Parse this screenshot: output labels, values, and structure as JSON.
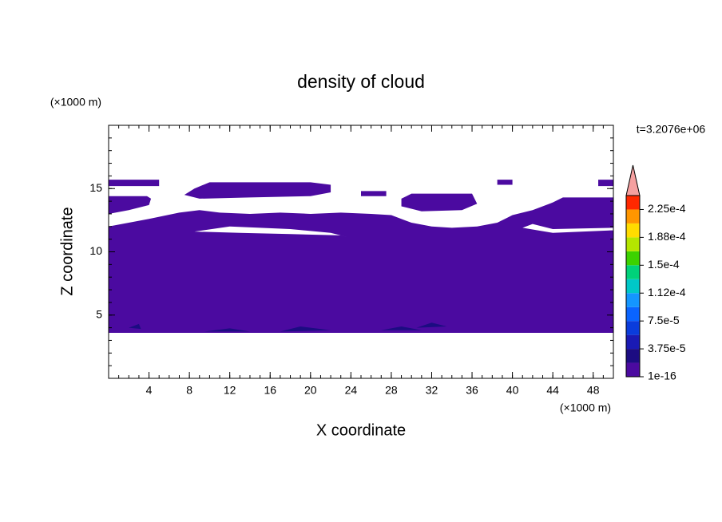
{
  "chart_data": {
    "type": "contour",
    "title": "density of cloud",
    "x_label": "X coordinate",
    "y_label": "Z coordinate",
    "x_unit": "(×1000 m)",
    "y_unit": "(×1000 m)",
    "time_label": "t=3.2076e+06",
    "xlim": [
      0,
      50
    ],
    "ylim": [
      0,
      20
    ],
    "xticks": [
      4,
      8,
      12,
      16,
      20,
      24,
      28,
      32,
      36,
      40,
      44,
      48
    ],
    "yticks": [
      5,
      10,
      15
    ],
    "colorbar": {
      "clim": [
        1e-16,
        0.00024375
      ],
      "colors": [
        "#4b0aa0",
        "#1c0c82",
        "#1a1ab4",
        "#0a3cdc",
        "#0a64ff",
        "#1496ff",
        "#00c8c8",
        "#00d27a",
        "#3cd200",
        "#b4e600",
        "#ffdc00",
        "#ff9600",
        "#ff2800"
      ],
      "extend_color": "#f5a0a0",
      "ticks": [
        {
          "value": 1e-16,
          "label": "1e-16"
        },
        {
          "value": 3.75e-05,
          "label": "3.75e-5"
        },
        {
          "value": 7.5e-05,
          "label": "7.5e-5"
        },
        {
          "value": 0.0001125,
          "label": "1.12e-4"
        },
        {
          "value": 0.00015,
          "label": "1.5e-4"
        },
        {
          "value": 0.0001875,
          "label": "1.88e-4"
        },
        {
          "value": 0.000225,
          "label": "2.25e-4"
        }
      ]
    },
    "regions": [
      {
        "level": 0,
        "rings": [
          [
            [
              0,
              3.6
            ],
            [
              50,
              3.6
            ],
            [
              50,
              14.3
            ],
            [
              45,
              14.3
            ],
            [
              44,
              13.9
            ],
            [
              42,
              13.3
            ],
            [
              40,
              12.9
            ],
            [
              38.5,
              12.3
            ],
            [
              36.5,
              12.0
            ],
            [
              34,
              11.9
            ],
            [
              32,
              12.0
            ],
            [
              30,
              12.3
            ],
            [
              28,
              12.9
            ],
            [
              26,
              13.0
            ],
            [
              23,
              13.1
            ],
            [
              20,
              13.0
            ],
            [
              17,
              13.1
            ],
            [
              14,
              13.0
            ],
            [
              11,
              13.1
            ],
            [
              9,
              13.3
            ],
            [
              7,
              13.1
            ],
            [
              4,
              12.6
            ],
            [
              2,
              12.3
            ],
            [
              0,
              12.0
            ]
          ],
          [
            [
              8.5,
              11.6
            ],
            [
              12,
              12.0
            ],
            [
              18,
              11.8
            ],
            [
              22,
              11.5
            ],
            [
              24.5,
              11.0
            ],
            [
              23,
              11.3
            ],
            [
              18,
              11.4
            ],
            [
              13,
              11.5
            ]
          ],
          [
            [
              41,
              11.9
            ],
            [
              44,
              11.5
            ],
            [
              50,
              11.7
            ],
            [
              50,
              11.9
            ],
            [
              44,
              11.8
            ],
            [
              42,
              12.2
            ]
          ]
        ]
      },
      {
        "level": 0,
        "rings": [
          [
            [
              0,
              13.0
            ],
            [
              2,
              13.3
            ],
            [
              4,
              13.7
            ],
            [
              4.2,
              14.2
            ],
            [
              3.8,
              14.4
            ],
            [
              0,
              14.4
            ]
          ]
        ]
      },
      {
        "level": 0,
        "rings": [
          [
            [
              0,
              15.2
            ],
            [
              5,
              15.2
            ],
            [
              5,
              15.7
            ],
            [
              0,
              15.7
            ]
          ]
        ]
      },
      {
        "level": 0,
        "rings": [
          [
            [
              7.5,
              14.5
            ],
            [
              9,
              14.2
            ],
            [
              14,
              14.3
            ],
            [
              20,
              14.4
            ],
            [
              22,
              14.7
            ],
            [
              22,
              15.3
            ],
            [
              20,
              15.5
            ],
            [
              10,
              15.5
            ],
            [
              8.5,
              15.0
            ]
          ]
        ]
      },
      {
        "level": 0,
        "rings": [
          [
            [
              25,
              14.4
            ],
            [
              27.5,
              14.4
            ],
            [
              27.5,
              14.8
            ],
            [
              25,
              14.8
            ]
          ]
        ]
      },
      {
        "level": 0,
        "rings": [
          [
            [
              29,
              13.6
            ],
            [
              31,
              13.2
            ],
            [
              35,
              13.3
            ],
            [
              36.5,
              13.8
            ],
            [
              36,
              14.6
            ],
            [
              30,
              14.6
            ],
            [
              29,
              14.2
            ]
          ]
        ]
      },
      {
        "level": 0,
        "rings": [
          [
            [
              38.5,
              15.3
            ],
            [
              40,
              15.3
            ],
            [
              40,
              15.7
            ],
            [
              38.5,
              15.7
            ]
          ]
        ]
      },
      {
        "level": 0,
        "rings": [
          [
            [
              48.5,
              15.2
            ],
            [
              50,
              15.2
            ],
            [
              50,
              15.7
            ],
            [
              48.5,
              15.7
            ]
          ]
        ]
      },
      {
        "level": 1,
        "rings": [
          [
            [
              2,
              4.0
            ],
            [
              3,
              4.3
            ],
            [
              3.2,
              3.9
            ]
          ]
        ]
      },
      {
        "level": 1,
        "rings": [
          [
            [
              9.5,
              3.7
            ],
            [
              12,
              3.95
            ],
            [
              14,
              3.7
            ]
          ]
        ]
      },
      {
        "level": 1,
        "rings": [
          [
            [
              17,
              3.7
            ],
            [
              19,
              4.1
            ],
            [
              22,
              3.8
            ]
          ]
        ]
      },
      {
        "level": 1,
        "rings": [
          [
            [
              27,
              3.8
            ],
            [
              29,
              4.1
            ],
            [
              31,
              3.8
            ]
          ]
        ]
      },
      {
        "level": 1,
        "rings": [
          [
            [
              30.5,
              4.0
            ],
            [
              32,
              4.4
            ],
            [
              33.5,
              4.1
            ]
          ]
        ]
      }
    ]
  }
}
